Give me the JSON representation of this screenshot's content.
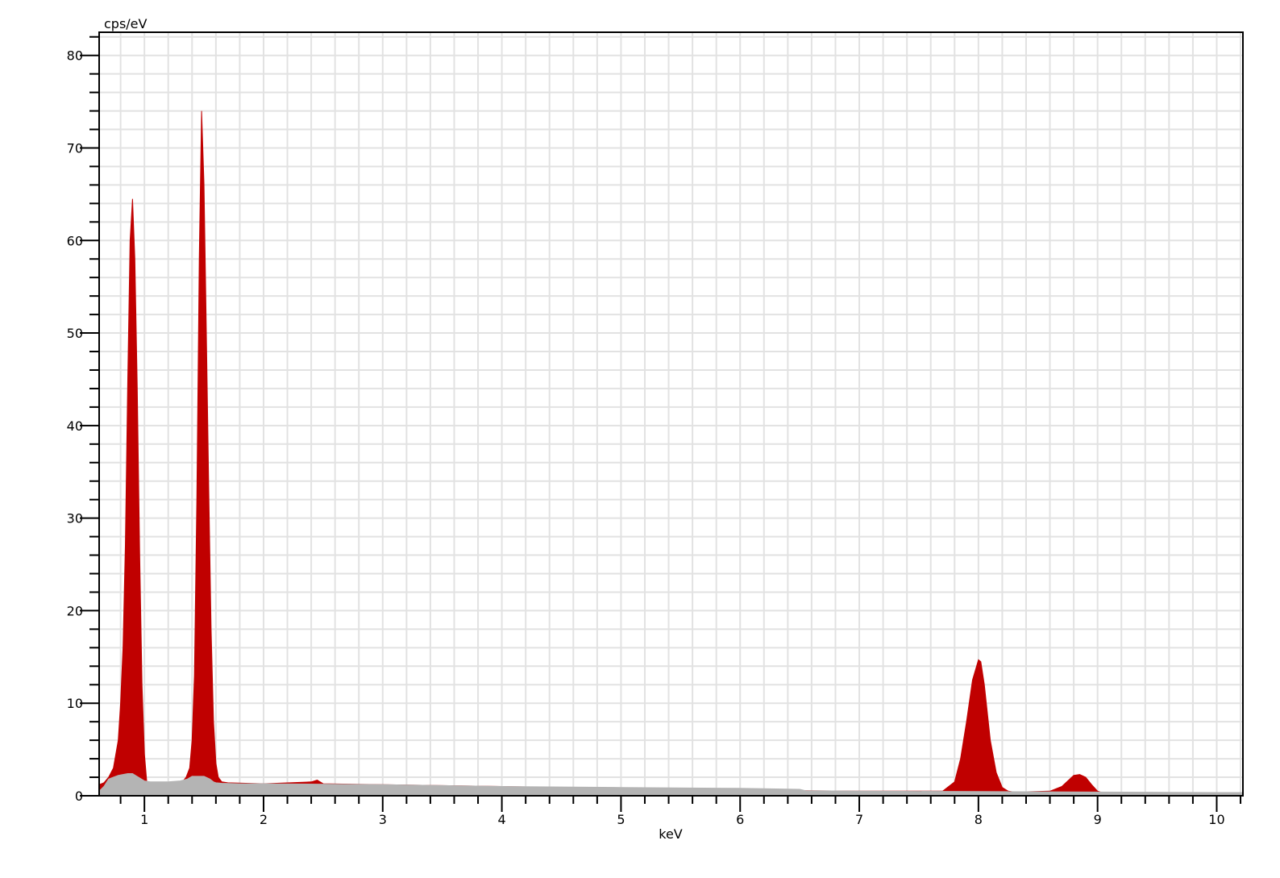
{
  "chart_data": {
    "type": "area",
    "xlabel": "keV",
    "ylabel": "cps/eV",
    "xlim": [
      0.62,
      10.22
    ],
    "ylim": [
      0,
      82.5
    ],
    "x_ticks": [
      1,
      2,
      3,
      4,
      5,
      6,
      7,
      8,
      9,
      10
    ],
    "x_tick_labels": [
      "1",
      "2",
      "3",
      "4",
      "5",
      "6",
      "7",
      "8",
      "9",
      "10"
    ],
    "y_ticks": [
      0,
      10,
      20,
      30,
      40,
      50,
      60,
      70,
      80
    ],
    "y_tick_labels": [
      "0",
      "10",
      "20",
      "30",
      "40",
      "50",
      "60",
      "70",
      "80"
    ],
    "x_minor_step": 0.2,
    "y_minor_step": 2,
    "grid": true,
    "series": [
      {
        "role": "measured-spectrum",
        "color": "#c00000",
        "x": [
          0.62,
          0.66,
          0.7,
          0.74,
          0.78,
          0.8,
          0.82,
          0.84,
          0.86,
          0.88,
          0.9,
          0.92,
          0.94,
          0.96,
          0.98,
          1.0,
          1.02,
          1.04,
          1.06,
          1.08,
          1.1,
          1.15,
          1.2,
          1.25,
          1.3,
          1.35,
          1.38,
          1.4,
          1.42,
          1.44,
          1.46,
          1.48,
          1.5,
          1.52,
          1.54,
          1.56,
          1.58,
          1.6,
          1.62,
          1.65,
          1.7,
          2.0,
          2.4,
          2.45,
          2.5,
          3.0,
          4.0,
          5.0,
          6.0,
          7.0,
          7.7,
          7.8,
          7.85,
          7.9,
          7.95,
          8.0,
          8.02,
          8.05,
          8.1,
          8.15,
          8.2,
          8.25,
          8.3,
          8.6,
          8.7,
          8.75,
          8.8,
          8.85,
          8.9,
          8.95,
          9.0,
          9.05,
          9.1,
          9.5,
          10.0,
          10.22
        ],
        "y": [
          1.2,
          1.4,
          2.0,
          3.0,
          6.0,
          10.0,
          16.0,
          27.0,
          45.0,
          60.0,
          64.5,
          58.0,
          44.0,
          26.0,
          12.0,
          4.5,
          1.5,
          1.0,
          0.8,
          0.7,
          0.8,
          0.9,
          1.0,
          1.0,
          1.2,
          2.0,
          3.0,
          6.0,
          13.0,
          32.0,
          58.0,
          74.0,
          66.0,
          50.0,
          33.0,
          18.0,
          8.0,
          3.5,
          2.0,
          1.5,
          1.4,
          1.3,
          1.5,
          1.7,
          1.3,
          1.2,
          1.0,
          0.8,
          0.6,
          0.5,
          0.5,
          1.5,
          4.0,
          8.0,
          12.5,
          14.7,
          14.5,
          12.0,
          6.0,
          2.5,
          0.9,
          0.5,
          0.4,
          0.5,
          1.0,
          1.6,
          2.2,
          2.3,
          2.0,
          1.2,
          0.5,
          0.3,
          0.3,
          0.3,
          0.3,
          0.3
        ]
      },
      {
        "role": "background-fit",
        "color": "#b4b4b4",
        "x": [
          0.62,
          0.66,
          0.7,
          0.74,
          0.78,
          0.82,
          0.86,
          0.9,
          0.95,
          1.0,
          1.05,
          1.1,
          1.15,
          1.2,
          1.3,
          1.36,
          1.4,
          1.45,
          1.5,
          1.55,
          1.58,
          1.6,
          1.65,
          1.8,
          2.0,
          3.0,
          4.0,
          5.0,
          6.0,
          6.5,
          6.55,
          7.0,
          8.0,
          9.0,
          10.0,
          10.22
        ],
        "y": [
          0.5,
          1.0,
          1.8,
          2.0,
          2.2,
          2.3,
          2.4,
          2.4,
          2.0,
          1.6,
          1.5,
          1.5,
          1.5,
          1.5,
          1.6,
          1.8,
          2.1,
          2.1,
          2.1,
          1.8,
          1.5,
          1.4,
          1.35,
          1.3,
          1.3,
          1.2,
          1.0,
          0.9,
          0.8,
          0.7,
          0.55,
          0.5,
          0.45,
          0.4,
          0.35,
          0.35
        ]
      }
    ]
  }
}
